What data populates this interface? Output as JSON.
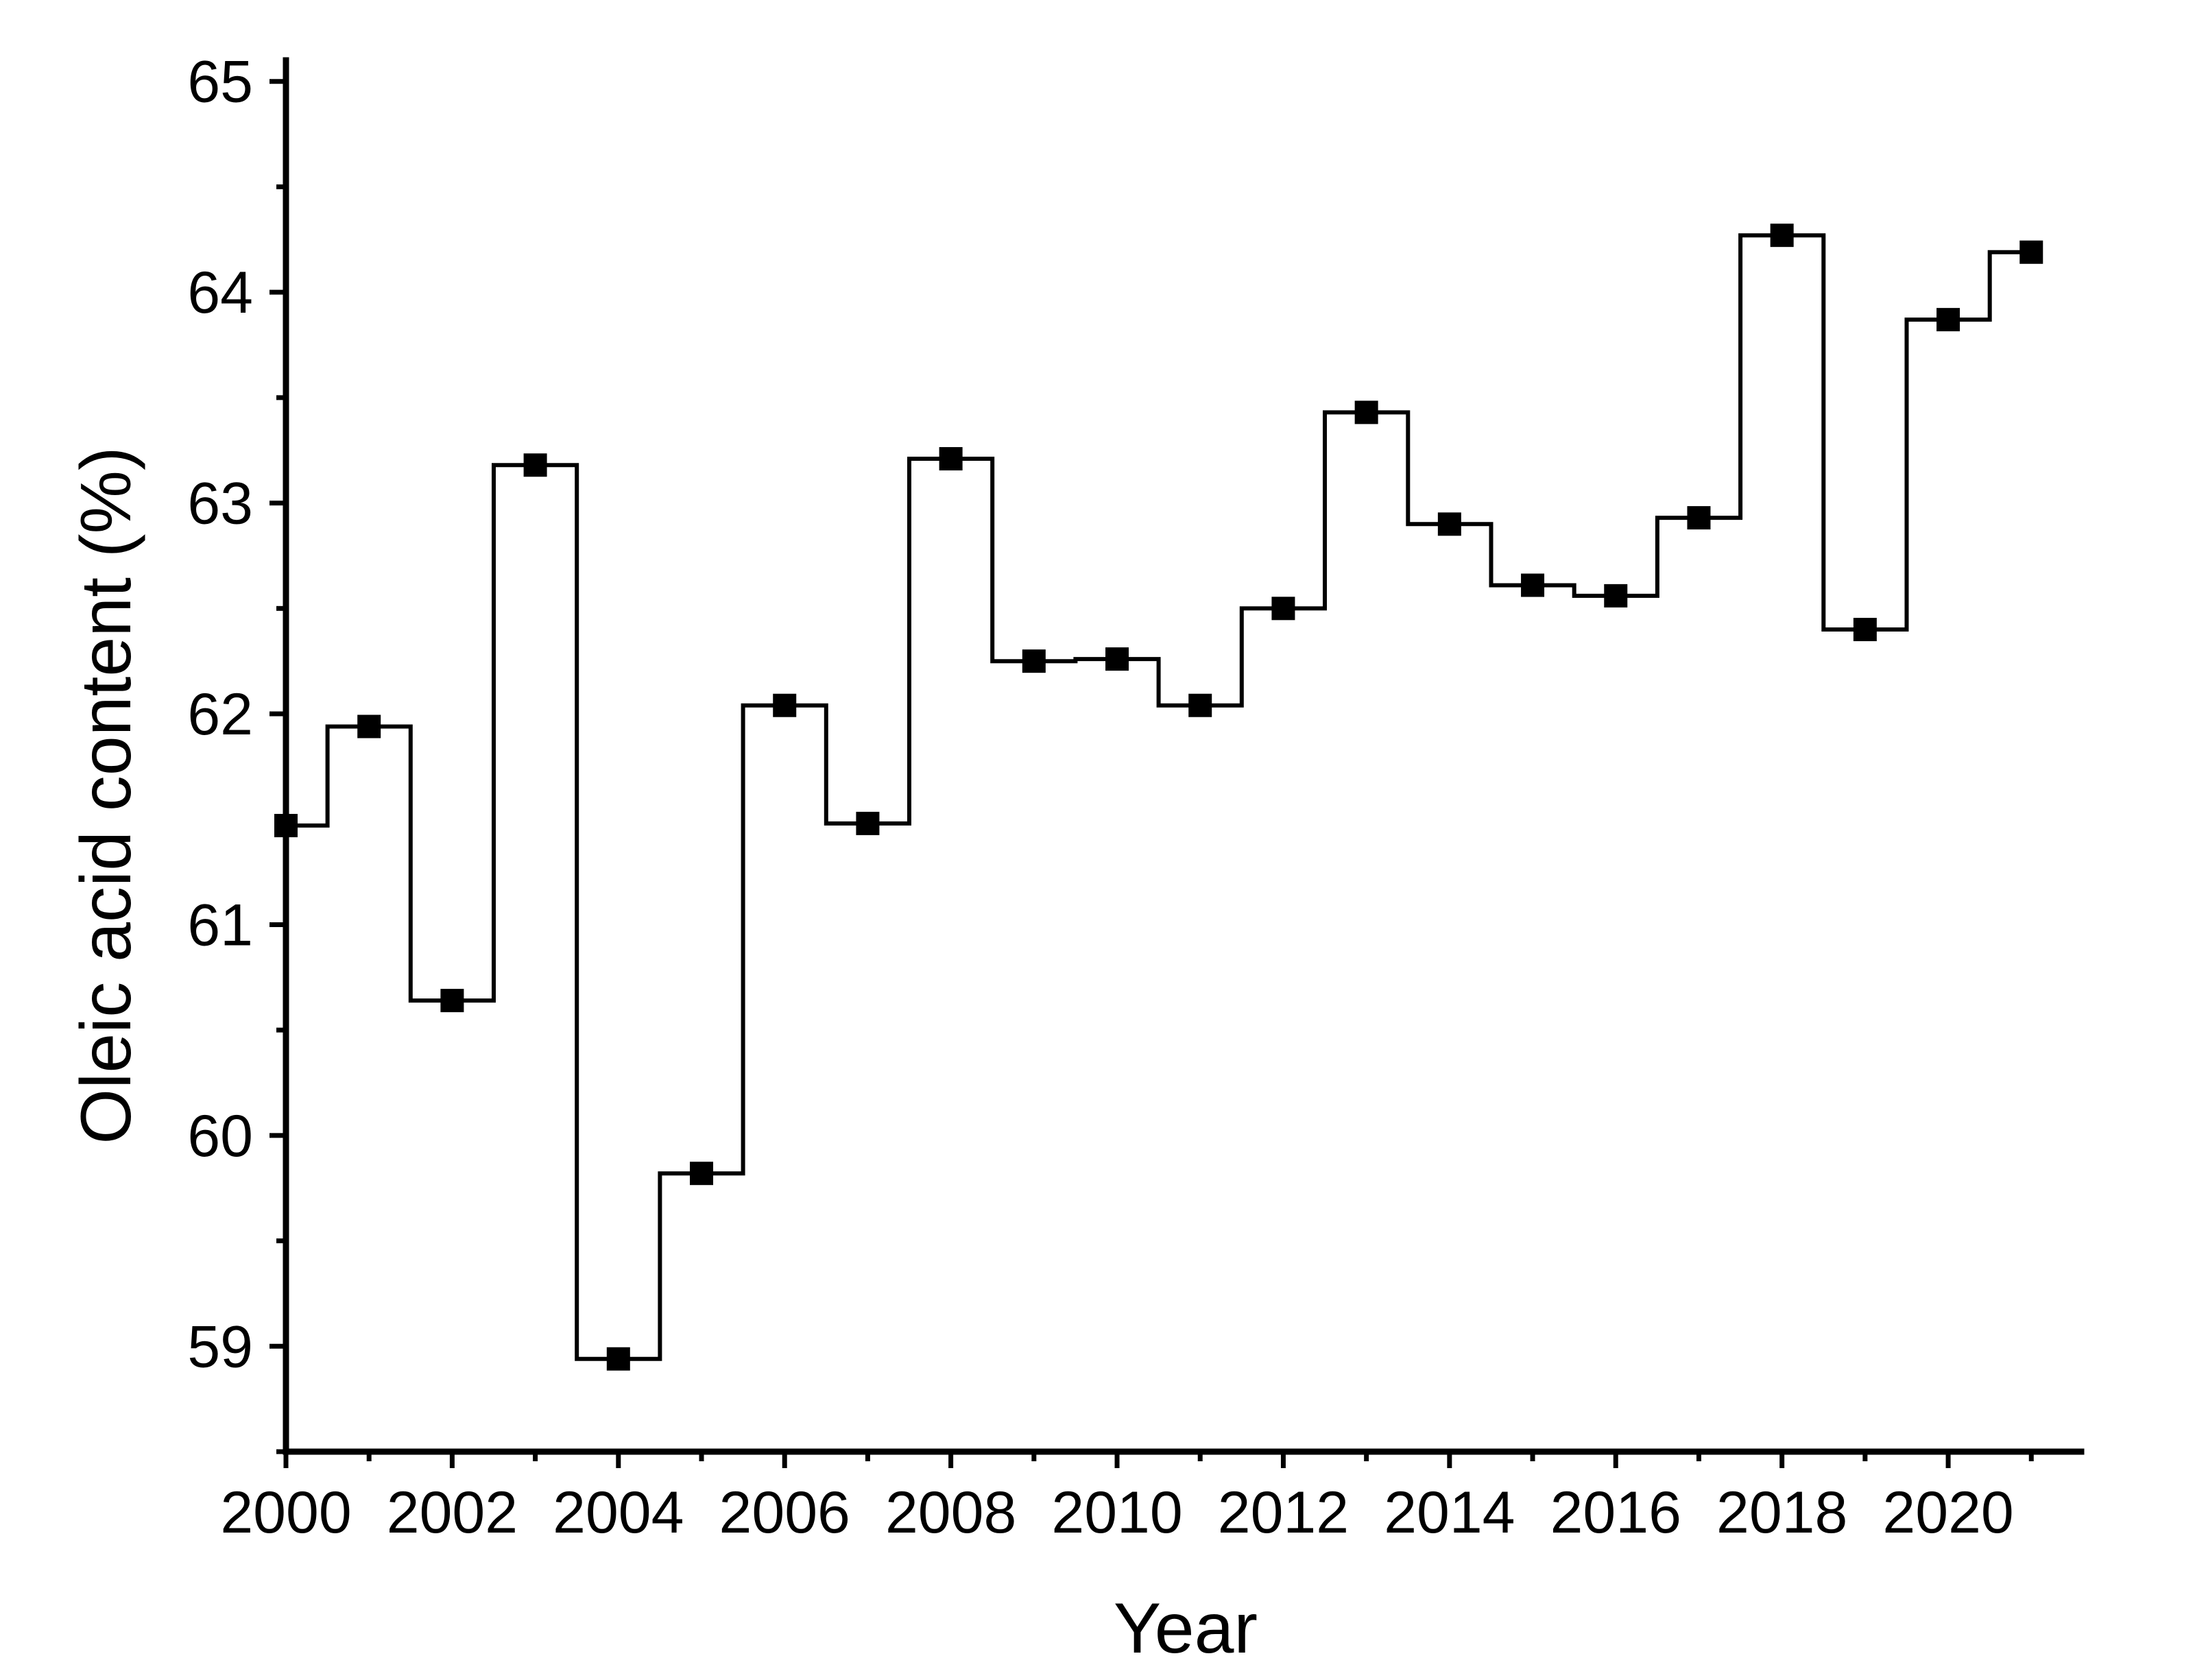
{
  "chart_data": {
    "type": "line",
    "style": "step-center",
    "marker": "square",
    "xlabel": "Year",
    "ylabel": "Oleic acid content (%)",
    "xlim": [
      2000,
      2021.6
    ],
    "ylim": [
      58.5,
      65.1
    ],
    "x_ticks": [
      2000,
      2002,
      2004,
      2006,
      2008,
      2010,
      2012,
      2014,
      2016,
      2018,
      2020
    ],
    "y_ticks": [
      59,
      60,
      61,
      62,
      63,
      64,
      65
    ],
    "x": [
      2000,
      2001,
      2002,
      2003,
      2004,
      2005,
      2006,
      2007,
      2008,
      2009,
      2010,
      2011,
      2012,
      2013,
      2014,
      2015,
      2016,
      2017,
      2018,
      2019,
      2020,
      2021
    ],
    "values": [
      61.47,
      61.94,
      60.64,
      63.18,
      58.94,
      59.82,
      62.04,
      61.48,
      63.21,
      62.25,
      62.26,
      62.04,
      62.5,
      63.43,
      62.9,
      62.61,
      62.56,
      62.93,
      64.27,
      62.4,
      63.87,
      64.19
    ],
    "colors": {
      "line": "#000000",
      "marker": "#000000",
      "axis": "#000000"
    },
    "grid": false,
    "legend": "none"
  }
}
